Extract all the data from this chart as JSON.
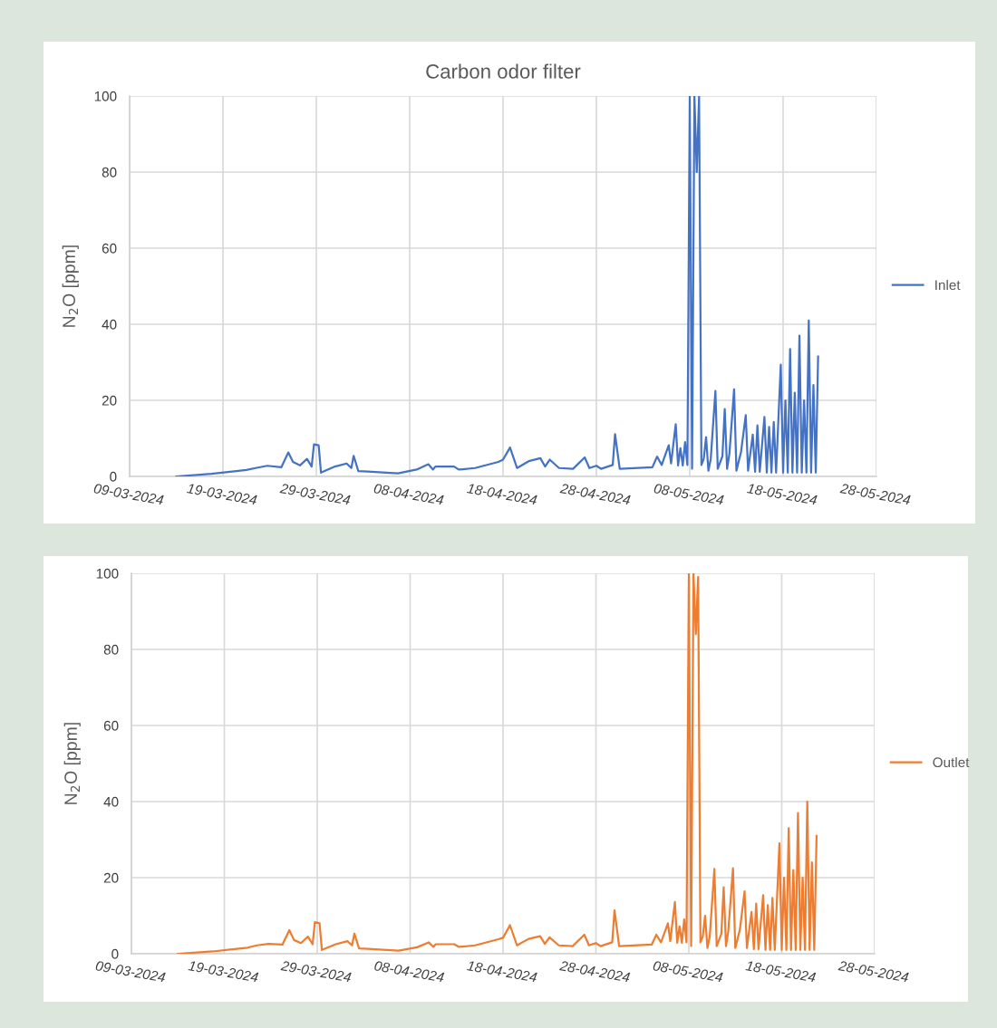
{
  "chart_data": [
    {
      "type": "line",
      "title": "Carbon odor filter",
      "ylabel": "N$_{2}$O [ppm]",
      "x": [
        "2024-03-14",
        "2024-03-17T18:00",
        "2024-03-21T12:00",
        "2024-03-22T12:00",
        "2024-03-23T18:00",
        "2024-03-25T06:00",
        "2024-03-26",
        "2024-03-26T12:00",
        "2024-03-27T06:00",
        "2024-03-28",
        "2024-03-28T12:00",
        "2024-03-28T18:00",
        "2024-03-29T06:00",
        "2024-03-29T12:00",
        "2024-03-31",
        "2024-04-01T06:00",
        "2024-04-01T18:00",
        "2024-04-02",
        "2024-04-02T12:00",
        "2024-04-03T12:00",
        "2024-04-06T18:00",
        "2024-04-08T18:00",
        "2024-04-10",
        "2024-04-10T12:00",
        "2024-04-10T18:00",
        "2024-04-12T18:00",
        "2024-04-13T06:00",
        "2024-04-15",
        "2024-04-17T12:00",
        "2024-04-18",
        "2024-04-18T18:00",
        "2024-04-19T12:00",
        "2024-04-20T18:00",
        "2024-04-22",
        "2024-04-22T12:00",
        "2024-04-23",
        "2024-04-24",
        "2024-04-25T12:00",
        "2024-04-26T18:00",
        "2024-04-27T06:00",
        "2024-04-28",
        "2024-04-28T12:00",
        "2024-04-29T18:00",
        "2024-04-30",
        "2024-04-30T12:00",
        "2024-05-04",
        "2024-05-04T12:00",
        "2024-05-05",
        "2024-05-05T06:00",
        "2024-05-05T18:00",
        "2024-05-06",
        "2024-05-06T12:00",
        "2024-05-06T18:00",
        "2024-05-07",
        "2024-05-07T06:00",
        "2024-05-07T12:00",
        "2024-05-07T18:00",
        "2024-05-08",
        "2024-05-08T06:00",
        "2024-05-08T12:00",
        "2024-05-08T18:00",
        "2024-05-09",
        "2024-05-09T06:00",
        "2024-05-09T12:00",
        "2024-05-09T18:00",
        "2024-05-10",
        "2024-05-10T06:00",
        "2024-05-10T18:00",
        "2024-05-11",
        "2024-05-11T12:00",
        "2024-05-11T18:00",
        "2024-05-12",
        "2024-05-12T06:00",
        "2024-05-12T18:00",
        "2024-05-13",
        "2024-05-13T12:00",
        "2024-05-14",
        "2024-05-14T06:00",
        "2024-05-14T18:00",
        "2024-05-15",
        "2024-05-15T06:00",
        "2024-05-15T12:00",
        "2024-05-16",
        "2024-05-16T06:00",
        "2024-05-16T12:00",
        "2024-05-16T18:00",
        "2024-05-17",
        "2024-05-17T06:00",
        "2024-05-17T18:00",
        "2024-05-18",
        "2024-05-18T06:00",
        "2024-05-18T12:00",
        "2024-05-18T18:00",
        "2024-05-19",
        "2024-05-19T06:00",
        "2024-05-19T12:00",
        "2024-05-19T18:00",
        "2024-05-20",
        "2024-05-20T06:00",
        "2024-05-20T12:00",
        "2024-05-20T18:00",
        "2024-05-21",
        "2024-05-21T06:00",
        "2024-05-21T12:00",
        "2024-05-21T18:00"
      ],
      "series": [
        {
          "name": "Inlet",
          "color": "#4472c4",
          "values": [
            0,
            0.7,
            1.7,
            2.2,
            2.8,
            2.4,
            6.3,
            3.8,
            2.9,
            4.6,
            2.6,
            8.4,
            8.2,
            1.0,
            2.6,
            3.4,
            2.2,
            5.4,
            1.4,
            1.3,
            0.8,
            1.8,
            3.2,
            1.8,
            2.6,
            2.6,
            1.8,
            2.2,
            3.8,
            4.4,
            7.6,
            2.2,
            4.0,
            4.8,
            2.6,
            4.4,
            2.2,
            2.0,
            5.0,
            2.2,
            2.8,
            2.0,
            3.0,
            11.1,
            2.0,
            2.4,
            5.2,
            3.0,
            4.8,
            8.2,
            3.4,
            13.7,
            2.9,
            7.4,
            2.9,
            9.0,
            3.0,
            100,
            2,
            100,
            80,
            100,
            3,
            4.6,
            10.3,
            1.5,
            4.6,
            22.5,
            2.0,
            5.3,
            17.7,
            2.0,
            6.0,
            22.9,
            1.5,
            6.5,
            16.1,
            1.5,
            11.0,
            1.2,
            13.4,
            1.2,
            15.6,
            1.0,
            13.0,
            1.0,
            14.3,
            1.0,
            29.4,
            1.0,
            20,
            1.0,
            33.5,
            1.0,
            22,
            1.0,
            37,
            1.0,
            20,
            1,
            41,
            1,
            24,
            1,
            31.5
          ]
        }
      ],
      "xlim": [
        "2024-03-09",
        "2024-05-28"
      ],
      "xticks": [
        {
          "value": "2024-03-09",
          "label": "09-03-2024"
        },
        {
          "value": "2024-03-19",
          "label": "19-03-2024"
        },
        {
          "value": "2024-03-29",
          "label": "29-03-2024"
        },
        {
          "value": "2024-04-08",
          "label": "08-04-2024"
        },
        {
          "value": "2024-04-18",
          "label": "18-04-2024"
        },
        {
          "value": "2024-04-28",
          "label": "28-04-2024"
        },
        {
          "value": "2024-05-08",
          "label": "08-05-2024"
        },
        {
          "value": "2024-05-18",
          "label": "18-05-2024"
        },
        {
          "value": "2024-05-28",
          "label": "28-05-2024"
        }
      ],
      "ylim": [
        0,
        100
      ],
      "yticks": [
        0,
        20,
        40,
        60,
        80,
        100
      ],
      "grid": true,
      "legend": "right",
      "marker": "none",
      "line_style": "solid"
    },
    {
      "type": "line",
      "ylabel": "N$_{2}$O [ppm]",
      "x": [
        "2024-03-14",
        "2024-03-17T18:00",
        "2024-03-21T12:00",
        "2024-03-22T12:00",
        "2024-03-23T18:00",
        "2024-03-25T06:00",
        "2024-03-26",
        "2024-03-26T12:00",
        "2024-03-27T06:00",
        "2024-03-28",
        "2024-03-28T12:00",
        "2024-03-28T18:00",
        "2024-03-29T06:00",
        "2024-03-29T12:00",
        "2024-03-31",
        "2024-04-01T06:00",
        "2024-04-01T18:00",
        "2024-04-02",
        "2024-04-02T12:00",
        "2024-04-03T12:00",
        "2024-04-06T18:00",
        "2024-04-08T18:00",
        "2024-04-10",
        "2024-04-10T12:00",
        "2024-04-10T18:00",
        "2024-04-12T18:00",
        "2024-04-13T06:00",
        "2024-04-15",
        "2024-04-17T12:00",
        "2024-04-18",
        "2024-04-18T18:00",
        "2024-04-19T12:00",
        "2024-04-20T18:00",
        "2024-04-22",
        "2024-04-22T12:00",
        "2024-04-23",
        "2024-04-24",
        "2024-04-25T12:00",
        "2024-04-26T18:00",
        "2024-04-27T06:00",
        "2024-04-28",
        "2024-04-28T12:00",
        "2024-04-29T18:00",
        "2024-04-30",
        "2024-04-30T12:00",
        "2024-05-04",
        "2024-05-04T12:00",
        "2024-05-05",
        "2024-05-05T06:00",
        "2024-05-05T18:00",
        "2024-05-06",
        "2024-05-06T12:00",
        "2024-05-06T18:00",
        "2024-05-07",
        "2024-05-07T06:00",
        "2024-05-07T12:00",
        "2024-05-07T18:00",
        "2024-05-08",
        "2024-05-08T06:00",
        "2024-05-08T12:00",
        "2024-05-08T18:00",
        "2024-05-09",
        "2024-05-09T06:00",
        "2024-05-09T12:00",
        "2024-05-09T18:00",
        "2024-05-10",
        "2024-05-10T06:00",
        "2024-05-10T18:00",
        "2024-05-11",
        "2024-05-11T12:00",
        "2024-05-11T18:00",
        "2024-05-12",
        "2024-05-12T06:00",
        "2024-05-12T18:00",
        "2024-05-13",
        "2024-05-13T12:00",
        "2024-05-14",
        "2024-05-14T06:00",
        "2024-05-14T18:00",
        "2024-05-15",
        "2024-05-15T06:00",
        "2024-05-15T12:00",
        "2024-05-16",
        "2024-05-16T06:00",
        "2024-05-16T12:00",
        "2024-05-16T18:00",
        "2024-05-17",
        "2024-05-17T06:00",
        "2024-05-17T18:00",
        "2024-05-18",
        "2024-05-18T06:00",
        "2024-05-18T12:00",
        "2024-05-18T18:00",
        "2024-05-19",
        "2024-05-19T06:00",
        "2024-05-19T12:00",
        "2024-05-19T18:00",
        "2024-05-20",
        "2024-05-20T06:00",
        "2024-05-20T12:00",
        "2024-05-20T18:00",
        "2024-05-21",
        "2024-05-21T06:00",
        "2024-05-21T12:00",
        "2024-05-21T18:00"
      ],
      "series": [
        {
          "name": "Outlet",
          "color": "#ed7d31",
          "values": [
            0,
            0.6,
            1.6,
            2.2,
            2.6,
            2.4,
            6.2,
            3.6,
            2.8,
            4.5,
            2.5,
            8.3,
            8.0,
            1.0,
            2.5,
            3.3,
            2.2,
            5.3,
            1.4,
            1.3,
            0.8,
            1.7,
            3.0,
            1.8,
            2.5,
            2.5,
            1.8,
            2.2,
            3.8,
            4.2,
            7.5,
            2.2,
            3.9,
            4.6,
            2.6,
            4.3,
            2.2,
            2.0,
            5.0,
            2.2,
            2.8,
            2.0,
            3.0,
            11.4,
            2.0,
            2.4,
            5.0,
            3.0,
            4.6,
            8.0,
            3.3,
            13.6,
            2.9,
            7.2,
            2.9,
            9.0,
            3.0,
            100,
            2,
            100,
            84,
            99,
            3,
            4.5,
            10.0,
            1.5,
            4.5,
            22.3,
            2.0,
            5.2,
            17.5,
            2.0,
            6.0,
            22.5,
            1.5,
            6.4,
            16.4,
            1.5,
            11.0,
            1.2,
            13.2,
            1.2,
            15.4,
            1.0,
            12.8,
            1.0,
            14.7,
            1.0,
            29,
            1.0,
            20,
            1.0,
            33,
            1.0,
            22,
            1.0,
            37,
            1.0,
            20,
            1,
            40,
            1,
            24,
            1,
            31
          ]
        }
      ],
      "xlim": [
        "2024-03-09",
        "2024-05-28"
      ],
      "xticks": [
        {
          "value": "2024-03-09",
          "label": "09-03-2024"
        },
        {
          "value": "2024-03-19",
          "label": "19-03-2024"
        },
        {
          "value": "2024-03-29",
          "label": "29-03-2024"
        },
        {
          "value": "2024-04-08",
          "label": "08-04-2024"
        },
        {
          "value": "2024-04-18",
          "label": "18-04-2024"
        },
        {
          "value": "2024-04-28",
          "label": "28-04-2024"
        },
        {
          "value": "2024-05-08",
          "label": "08-05-2024"
        },
        {
          "value": "2024-05-18",
          "label": "18-05-2024"
        },
        {
          "value": "2024-05-28",
          "label": "28-05-2024"
        }
      ],
      "ylim": [
        0,
        100
      ],
      "yticks": [
        0,
        20,
        40,
        60,
        80,
        100
      ],
      "grid": true,
      "legend": "right",
      "marker": "none",
      "line_style": "solid"
    }
  ]
}
